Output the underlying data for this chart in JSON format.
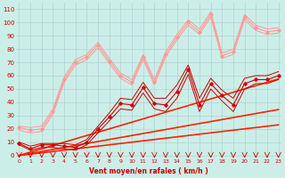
{
  "xlabel": "Vent moyen/en rafales ( km/h )",
  "background_color": "#cceee8",
  "grid_color": "#aacccc",
  "x": [
    0,
    1,
    2,
    3,
    4,
    5,
    6,
    7,
    8,
    9,
    10,
    11,
    12,
    13,
    14,
    15,
    16,
    17,
    18,
    19,
    20,
    21,
    22,
    23
  ],
  "series": [
    {
      "y": [
        9,
        5,
        8,
        8,
        7,
        6,
        10,
        20,
        29,
        39,
        38,
        51,
        39,
        38,
        48,
        65,
        38,
        54,
        45,
        38,
        54,
        57,
        57,
        60
      ],
      "color": "#cc0000",
      "lw": 0.8,
      "marker": "D",
      "ms": 1.8,
      "zorder": 4
    },
    {
      "y": [
        10,
        7,
        9,
        9,
        9,
        8,
        12,
        22,
        32,
        43,
        42,
        55,
        43,
        43,
        53,
        68,
        43,
        58,
        49,
        43,
        58,
        60,
        60,
        63
      ],
      "color": "#cc0000",
      "lw": 0.7,
      "marker": null,
      "ms": 0,
      "zorder": 3
    },
    {
      "y": [
        8,
        4,
        6,
        6,
        5,
        4,
        8,
        17,
        26,
        35,
        34,
        47,
        35,
        33,
        43,
        61,
        33,
        50,
        41,
        33,
        50,
        54,
        54,
        57
      ],
      "color": "#cc0000",
      "lw": 0.7,
      "marker": null,
      "ms": 0,
      "zorder": 3
    },
    {
      "y": [
        21,
        19,
        20,
        33,
        57,
        70,
        74,
        83,
        71,
        60,
        55,
        74,
        55,
        76,
        89,
        100,
        93,
        106,
        75,
        78,
        104,
        96,
        93,
        94
      ],
      "color": "#ff9999",
      "lw": 0.8,
      "marker": "D",
      "ms": 1.8,
      "zorder": 4
    },
    {
      "y": [
        22,
        21,
        22,
        35,
        59,
        72,
        76,
        85,
        73,
        62,
        57,
        76,
        57,
        78,
        91,
        102,
        95,
        108,
        77,
        80,
        106,
        98,
        95,
        96
      ],
      "color": "#ff9999",
      "lw": 0.7,
      "marker": null,
      "ms": 0,
      "zorder": 3
    },
    {
      "y": [
        19,
        17,
        18,
        31,
        55,
        68,
        72,
        81,
        69,
        58,
        53,
        72,
        53,
        74,
        87,
        98,
        91,
        104,
        73,
        76,
        102,
        94,
        91,
        92
      ],
      "color": "#ff9999",
      "lw": 0.7,
      "marker": null,
      "ms": 0,
      "zorder": 3
    },
    {
      "y": [
        0,
        1,
        2,
        3,
        4,
        5,
        6,
        7,
        8,
        9,
        10,
        11,
        12,
        13,
        14,
        15,
        16,
        17,
        18,
        19,
        20,
        21,
        22,
        23
      ],
      "color": "#ff2200",
      "lw": 1.2,
      "marker": null,
      "ms": 0,
      "zorder": 2
    },
    {
      "y": [
        0,
        1.5,
        3,
        4.5,
        6,
        7.5,
        9,
        10.5,
        12,
        13.5,
        15,
        16.5,
        18,
        19.5,
        21,
        22.5,
        24,
        25.5,
        27,
        28.5,
        30,
        31.5,
        33,
        34.5
      ],
      "color": "#ff2200",
      "lw": 1.2,
      "marker": null,
      "ms": 0,
      "zorder": 2
    },
    {
      "y": [
        0,
        2.5,
        5,
        7.5,
        10,
        12.5,
        15,
        17.5,
        20,
        22.5,
        25,
        27.5,
        30,
        32.5,
        35,
        37.5,
        40,
        42.5,
        45,
        47.5,
        50,
        52.5,
        55,
        57.5
      ],
      "color": "#ff2200",
      "lw": 1.2,
      "marker": null,
      "ms": 0,
      "zorder": 2
    }
  ],
  "yticks": [
    0,
    10,
    20,
    30,
    40,
    50,
    60,
    70,
    80,
    90,
    100,
    110
  ],
  "xticks": [
    0,
    1,
    2,
    3,
    4,
    5,
    6,
    7,
    8,
    9,
    10,
    11,
    12,
    13,
    14,
    15,
    16,
    17,
    18,
    19,
    20,
    21,
    22,
    23
  ],
  "ylim": [
    -2,
    115
  ],
  "xlim": [
    -0.3,
    23.3
  ]
}
